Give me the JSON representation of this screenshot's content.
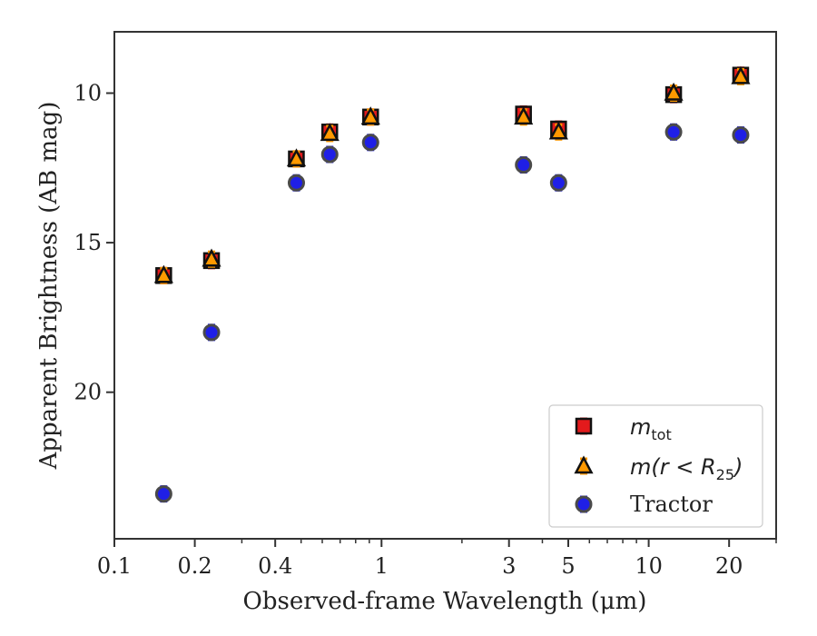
{
  "chart_data": {
    "type": "scatter",
    "xlabel": "Observed-frame Wavelength (μm)",
    "ylabel": "Apparent Brightness (AB mag)",
    "x_scale": "log",
    "xlim": [
      0.1,
      30
    ],
    "ylim": [
      24.9,
      7.95
    ],
    "y_inverted": true,
    "x_ticks": [
      0.1,
      0.2,
      0.4,
      1,
      3,
      5,
      10,
      20
    ],
    "x_tick_labels": [
      "0.1",
      "0.2",
      "0.4",
      "1",
      "3",
      "5",
      "10",
      "20"
    ],
    "y_ticks": [
      10,
      15,
      20
    ],
    "y_tick_labels": [
      "10",
      "15",
      "20"
    ],
    "grid": false,
    "legend_position": "lower-right",
    "legend": [
      {
        "label_main": "m",
        "label_sub": "tot",
        "label_rest": ""
      },
      {
        "label_main": "m(r < R",
        "label_sub": "25",
        "label_rest": ")"
      },
      {
        "label_main": "Tractor",
        "label_sub": "",
        "label_rest": ""
      }
    ],
    "series": [
      {
        "marker": "square",
        "color": "#e31a1c",
        "x": [
          0.153,
          0.231,
          0.48,
          0.64,
          0.91,
          3.4,
          4.6,
          12.4,
          22.1
        ],
        "y": [
          16.1,
          15.6,
          12.2,
          11.3,
          10.8,
          10.7,
          11.2,
          10.05,
          9.4
        ]
      },
      {
        "marker": "triangle",
        "color": "#ff9900",
        "x": [
          0.153,
          0.231,
          0.48,
          0.64,
          0.91,
          3.4,
          4.6,
          12.4,
          22.1
        ],
        "y": [
          16.1,
          15.55,
          12.2,
          11.35,
          10.8,
          10.8,
          11.3,
          10.0,
          9.45
        ]
      },
      {
        "marker": "circle",
        "color": "#1f1fe6",
        "x": [
          0.153,
          0.231,
          0.48,
          0.64,
          0.91,
          3.4,
          4.6,
          12.4,
          22.1
        ],
        "y": [
          23.4,
          18.0,
          13.0,
          12.05,
          11.65,
          12.4,
          13.0,
          11.3,
          11.4
        ]
      }
    ]
  }
}
